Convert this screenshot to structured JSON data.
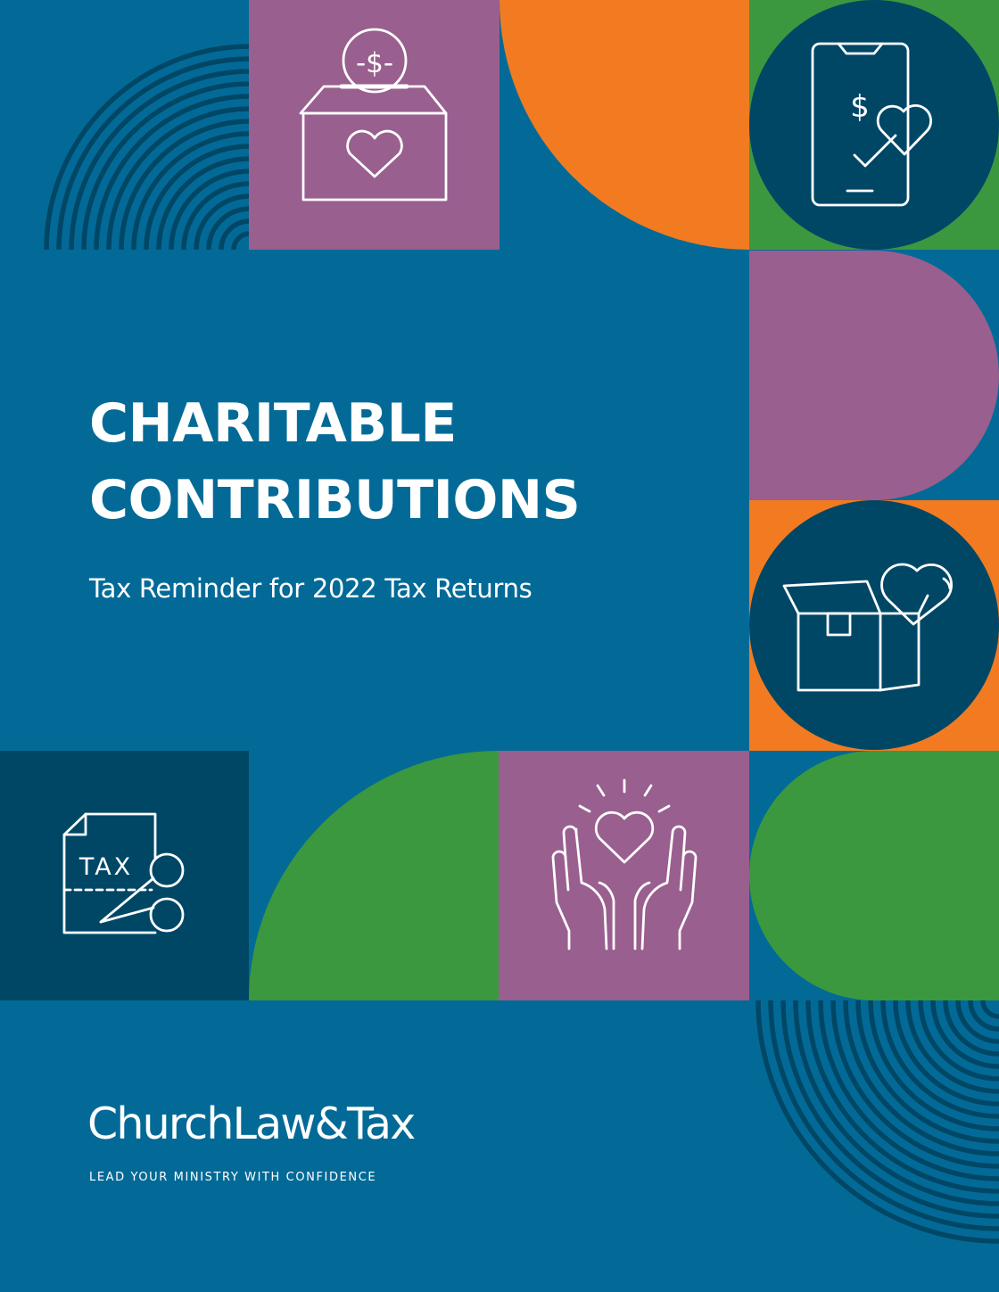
{
  "cover": {
    "title_line1": "CHARITABLE",
    "title_line2": "CONTRIBUTIONS",
    "subtitle": "Tax Reminder for 2022 Tax Returns"
  },
  "icons": {
    "donation_box": "donation-box-heart-icon",
    "mobile_giving": "mobile-giving-icon",
    "gift_box": "gift-box-heart-icon",
    "tax_cut": "tax-document-scissors-icon",
    "hands_heart": "hands-holding-heart-icon",
    "dollar_label": "-$-",
    "dollar_sign": "$",
    "tax_label": "TAX"
  },
  "brand": {
    "logo_text": "ChurchLaw&Tax",
    "tagline": "LEAD YOUR MINISTRY WITH CONFIDENCE"
  },
  "colors": {
    "background_blue": "#036a97",
    "navy": "#004766",
    "purple": "#995f8f",
    "orange": "#f27b21",
    "green": "#3b983f",
    "text": "#ffffff"
  }
}
